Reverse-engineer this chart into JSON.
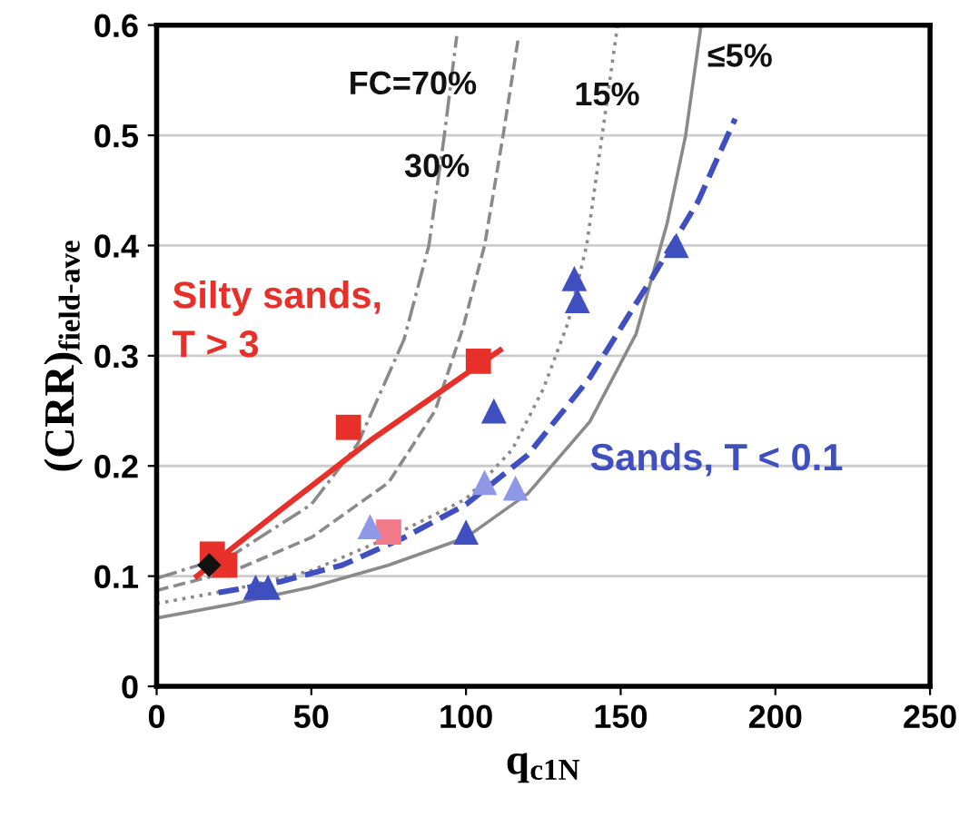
{
  "chart_data": {
    "type": "line",
    "xlabel": "q$_{c1N}$",
    "ylabel": "(CRR)$_{field-ave}$",
    "xlim": [
      0,
      250
    ],
    "ylim": [
      0,
      0.6
    ],
    "xticks": [
      0,
      50,
      100,
      150,
      200,
      250
    ],
    "yticks": [
      0,
      0.1,
      0.2,
      0.3,
      0.4,
      0.5,
      0.6
    ],
    "grid": "y",
    "legend": false,
    "series": [
      {
        "color": "#8a8a8a",
        "line_style": "solid",
        "marker": "none",
        "x": [
          0,
          25,
          50,
          75,
          100,
          120,
          140,
          155,
          165,
          171,
          176
        ],
        "values": [
          0.062,
          0.075,
          0.09,
          0.11,
          0.135,
          0.175,
          0.24,
          0.32,
          0.42,
          0.5,
          0.6
        ]
      },
      {
        "color": "#8a8a8a",
        "line_style": "dotted",
        "marker": "none",
        "x": [
          0,
          25,
          50,
          75,
          100,
          115,
          125,
          133,
          139,
          144,
          149
        ],
        "values": [
          0.075,
          0.088,
          0.105,
          0.135,
          0.17,
          0.215,
          0.27,
          0.33,
          0.4,
          0.5,
          0.6
        ]
      },
      {
        "color": "#8a8a8a",
        "line_style": "dashed",
        "marker": "none",
        "x": [
          0,
          25,
          50,
          75,
          90,
          99,
          106,
          112,
          117
        ],
        "values": [
          0.087,
          0.105,
          0.135,
          0.185,
          0.25,
          0.325,
          0.4,
          0.5,
          0.59
        ]
      },
      {
        "color": "#8a8a8a",
        "line_style": "dashdot",
        "marker": "none",
        "x": [
          0,
          25,
          50,
          65,
          80,
          88,
          93,
          97
        ],
        "values": [
          0.098,
          0.12,
          0.165,
          0.22,
          0.315,
          0.4,
          0.5,
          0.59
        ]
      },
      {
        "color": "#e8302a",
        "line_style": "solid",
        "marker": "none",
        "x": [
          13,
          40,
          70,
          111
        ],
        "values": [
          0.1,
          0.16,
          0.225,
          0.305
        ]
      },
      {
        "color": "#3f4fc0",
        "line_style": "dashed",
        "marker": "none",
        "x": [
          20,
          40,
          60,
          80,
          100,
          120,
          140,
          160,
          175,
          187
        ],
        "values": [
          0.085,
          0.095,
          0.11,
          0.135,
          0.165,
          0.21,
          0.28,
          0.37,
          0.44,
          0.515
        ]
      },
      {
        "type": "scatter",
        "color": "#e8302a",
        "marker": "square",
        "x": [
          18,
          22,
          62,
          104
        ],
        "values": [
          0.12,
          0.11,
          0.235,
          0.295
        ]
      },
      {
        "type": "scatter",
        "color": "#f07a8a",
        "marker": "square",
        "x": [
          75
        ],
        "values": [
          0.14
        ]
      },
      {
        "type": "scatter",
        "color": "#111111",
        "marker": "diamond",
        "x": [
          17
        ],
        "values": [
          0.11
        ]
      },
      {
        "type": "scatter",
        "color": "#3f4fc0",
        "marker": "triangle",
        "x": [
          32,
          36,
          100,
          109,
          135,
          136,
          168
        ],
        "values": [
          0.09,
          0.09,
          0.14,
          0.25,
          0.37,
          0.35,
          0.4
        ]
      },
      {
        "type": "scatter",
        "color": "#8f98e6",
        "marker": "triangle",
        "x": [
          69,
          106,
          116
        ],
        "values": [
          0.145,
          0.185,
          0.18
        ]
      }
    ],
    "annotations": [
      "FC=70%",
      "30%",
      "15%",
      "≤5%",
      "Silty sands,\nT > 3",
      "Sands, T < 0.1"
    ]
  }
}
